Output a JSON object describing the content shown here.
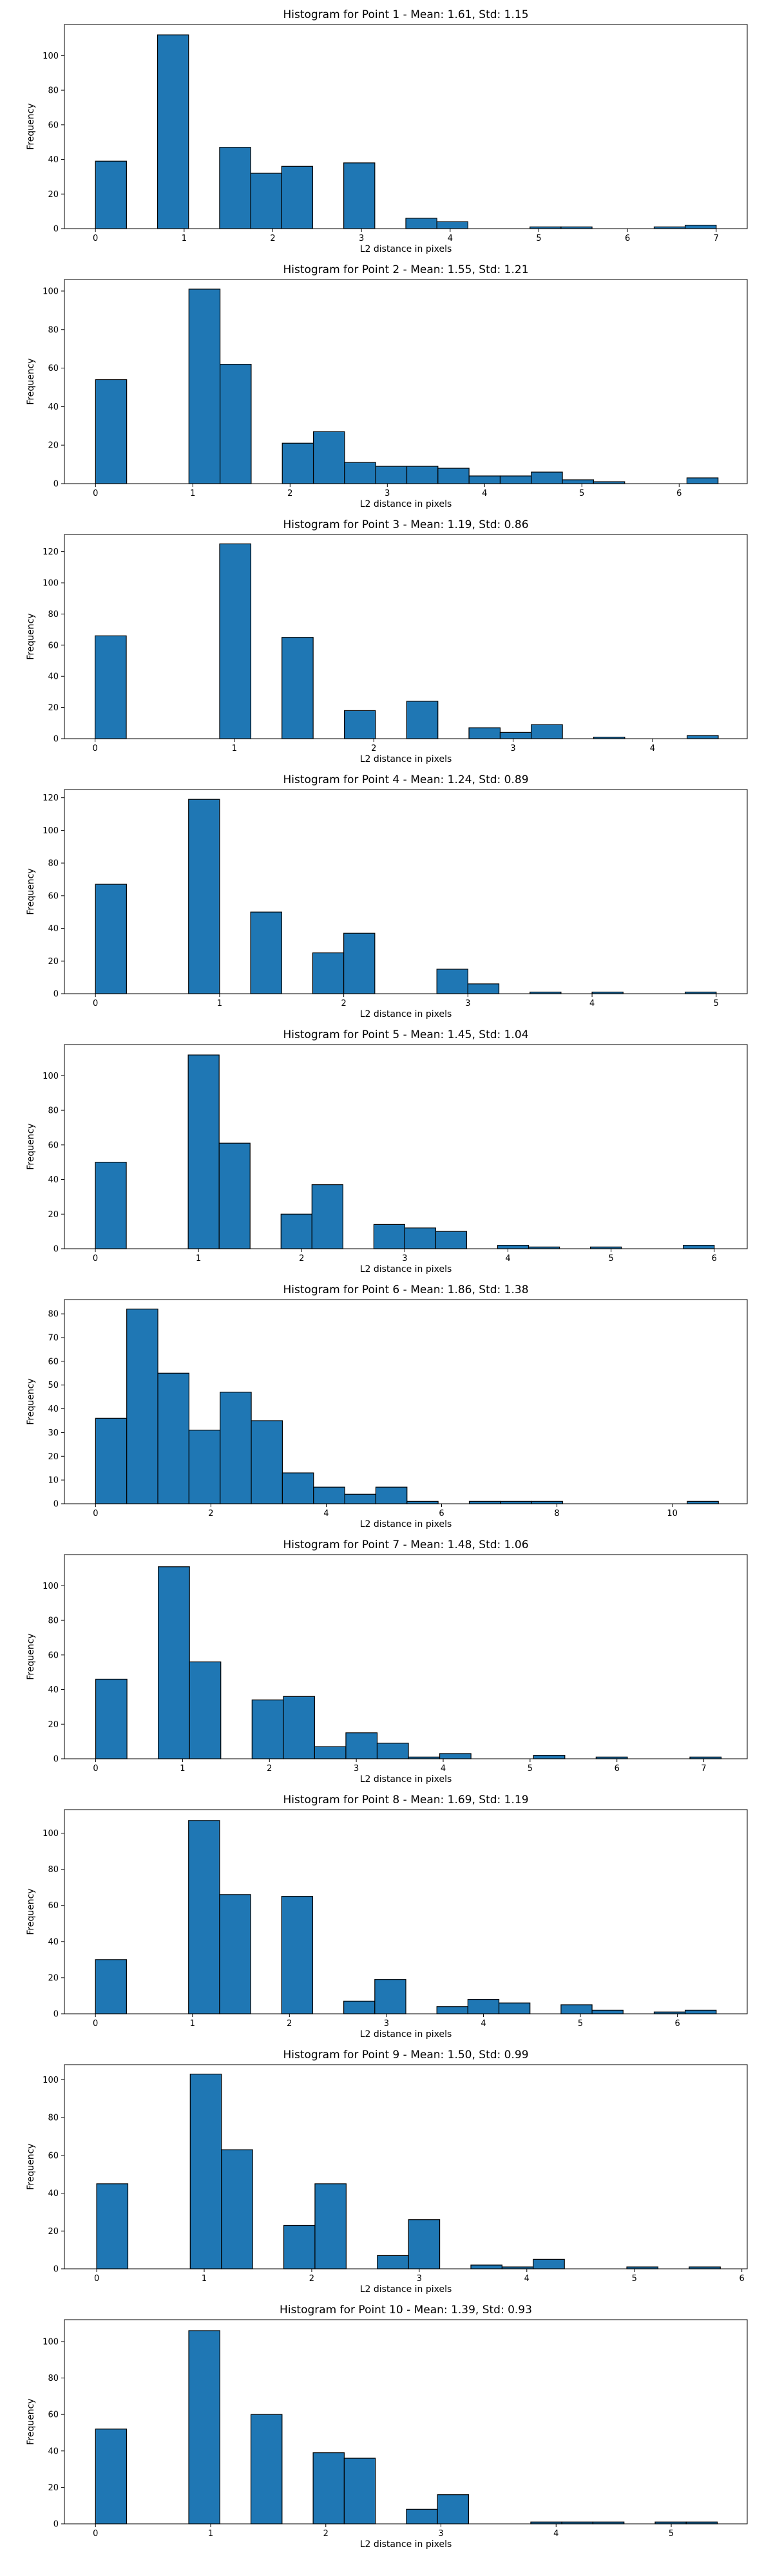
{
  "chart_data": [
    {
      "type": "bar",
      "title": "Histogram for Point 1 - Mean: 1.61, Std: 1.15",
      "xlabel": "L2 distance in pixels",
      "ylabel": "Frequency",
      "xlim": [
        -0.35,
        7.35
      ],
      "ylim": [
        0,
        118
      ],
      "xticks": [
        0,
        1,
        2,
        3,
        4,
        5,
        6,
        7
      ],
      "yticks": [
        0,
        20,
        40,
        60,
        80,
        100
      ],
      "bins": [
        {
          "x0": 0.0,
          "x1": 0.35,
          "count": 39
        },
        {
          "x0": 0.7,
          "x1": 1.05,
          "count": 112
        },
        {
          "x0": 1.4,
          "x1": 1.75,
          "count": 47
        },
        {
          "x0": 1.75,
          "x1": 2.1,
          "count": 32
        },
        {
          "x0": 2.1,
          "x1": 2.45,
          "count": 36
        },
        {
          "x0": 2.8,
          "x1": 3.15,
          "count": 38
        },
        {
          "x0": 3.5,
          "x1": 3.85,
          "count": 6
        },
        {
          "x0": 3.85,
          "x1": 4.2,
          "count": 4
        },
        {
          "x0": 4.9,
          "x1": 5.25,
          "count": 1
        },
        {
          "x0": 5.25,
          "x1": 5.6,
          "count": 1
        },
        {
          "x0": 6.3,
          "x1": 6.65,
          "count": 1
        },
        {
          "x0": 6.65,
          "x1": 7.0,
          "count": 2
        }
      ]
    },
    {
      "type": "bar",
      "title": "Histogram for Point 2 - Mean: 1.55, Std: 1.21",
      "xlabel": "L2 distance in pixels",
      "ylabel": "Frequency",
      "xlim": [
        -0.32,
        6.7
      ],
      "ylim": [
        0,
        106
      ],
      "xticks": [
        0,
        1,
        2,
        3,
        4,
        5,
        6
      ],
      "yticks": [
        0,
        20,
        40,
        60,
        80,
        100
      ],
      "bins": [
        {
          "x0": 0.0,
          "x1": 0.32,
          "count": 54
        },
        {
          "x0": 0.96,
          "x1": 1.28,
          "count": 101
        },
        {
          "x0": 1.28,
          "x1": 1.6,
          "count": 62
        },
        {
          "x0": 1.92,
          "x1": 2.24,
          "count": 21
        },
        {
          "x0": 2.24,
          "x1": 2.56,
          "count": 27
        },
        {
          "x0": 2.56,
          "x1": 2.88,
          "count": 11
        },
        {
          "x0": 2.88,
          "x1": 3.2,
          "count": 9
        },
        {
          "x0": 3.2,
          "x1": 3.52,
          "count": 9
        },
        {
          "x0": 3.52,
          "x1": 3.84,
          "count": 8
        },
        {
          "x0": 3.84,
          "x1": 4.16,
          "count": 4
        },
        {
          "x0": 4.16,
          "x1": 4.48,
          "count": 4
        },
        {
          "x0": 4.48,
          "x1": 4.8,
          "count": 6
        },
        {
          "x0": 4.8,
          "x1": 5.12,
          "count": 2
        },
        {
          "x0": 5.12,
          "x1": 5.44,
          "count": 1
        },
        {
          "x0": 6.08,
          "x1": 6.4,
          "count": 3
        }
      ]
    },
    {
      "type": "bar",
      "title": "Histogram for Point 3 - Mean: 1.19, Std: 0.86",
      "xlabel": "L2 distance in pixels",
      "ylabel": "Frequency",
      "xlim": [
        -0.22,
        4.68
      ],
      "ylim": [
        0,
        131
      ],
      "xticks": [
        0,
        1,
        2,
        3,
        4
      ],
      "yticks": [
        0,
        20,
        40,
        60,
        80,
        100,
        120
      ],
      "bins": [
        {
          "x0": 0.0,
          "x1": 0.224,
          "count": 66
        },
        {
          "x0": 0.894,
          "x1": 1.118,
          "count": 125
        },
        {
          "x0": 1.341,
          "x1": 1.565,
          "count": 65
        },
        {
          "x0": 1.789,
          "x1": 2.012,
          "count": 18
        },
        {
          "x0": 2.236,
          "x1": 2.46,
          "count": 24
        },
        {
          "x0": 2.683,
          "x1": 2.907,
          "count": 7
        },
        {
          "x0": 2.907,
          "x1": 3.13,
          "count": 4
        },
        {
          "x0": 3.13,
          "x1": 3.354,
          "count": 9
        },
        {
          "x0": 3.578,
          "x1": 3.801,
          "count": 1
        },
        {
          "x0": 4.249,
          "x1": 4.472,
          "count": 2
        }
      ]
    },
    {
      "type": "bar",
      "title": "Histogram for Point 4 - Mean: 1.24, Std: 0.89",
      "xlabel": "L2 distance in pixels",
      "ylabel": "Frequency",
      "xlim": [
        -0.25,
        5.25
      ],
      "ylim": [
        0,
        125
      ],
      "xticks": [
        0,
        1,
        2,
        3,
        4,
        5
      ],
      "yticks": [
        0,
        20,
        40,
        60,
        80,
        100,
        120
      ],
      "bins": [
        {
          "x0": 0.0,
          "x1": 0.25,
          "count": 67
        },
        {
          "x0": 0.75,
          "x1": 1.0,
          "count": 119
        },
        {
          "x0": 1.25,
          "x1": 1.5,
          "count": 50
        },
        {
          "x0": 1.75,
          "x1": 2.0,
          "count": 25
        },
        {
          "x0": 2.0,
          "x1": 2.25,
          "count": 37
        },
        {
          "x0": 2.75,
          "x1": 3.0,
          "count": 15
        },
        {
          "x0": 3.0,
          "x1": 3.25,
          "count": 6
        },
        {
          "x0": 3.5,
          "x1": 3.75,
          "count": 1
        },
        {
          "x0": 4.0,
          "x1": 4.25,
          "count": 1
        },
        {
          "x0": 4.75,
          "x1": 5.0,
          "count": 1
        }
      ]
    },
    {
      "type": "bar",
      "title": "Histogram for Point 5 - Mean: 1.45, Std: 1.04",
      "xlabel": "L2 distance in pixels",
      "ylabel": "Frequency",
      "xlim": [
        -0.3,
        6.32
      ],
      "ylim": [
        0,
        118
      ],
      "xticks": [
        0,
        1,
        2,
        3,
        4,
        5,
        6
      ],
      "yticks": [
        0,
        20,
        40,
        60,
        80,
        100
      ],
      "bins": [
        {
          "x0": 0.0,
          "x1": 0.3,
          "count": 50
        },
        {
          "x0": 0.9,
          "x1": 1.2,
          "count": 112
        },
        {
          "x0": 1.2,
          "x1": 1.5,
          "count": 61
        },
        {
          "x0": 1.8,
          "x1": 2.1,
          "count": 20
        },
        {
          "x0": 2.1,
          "x1": 2.4,
          "count": 37
        },
        {
          "x0": 2.7,
          "x1": 3.0,
          "count": 14
        },
        {
          "x0": 3.0,
          "x1": 3.3,
          "count": 12
        },
        {
          "x0": 3.3,
          "x1": 3.6,
          "count": 10
        },
        {
          "x0": 3.9,
          "x1": 4.2,
          "count": 2
        },
        {
          "x0": 4.2,
          "x1": 4.5,
          "count": 1
        },
        {
          "x0": 4.8,
          "x1": 5.1,
          "count": 1
        },
        {
          "x0": 5.7,
          "x1": 6.0,
          "count": 2
        }
      ]
    },
    {
      "type": "bar",
      "title": "Histogram for Point 6 - Mean: 1.86, Std: 1.38",
      "xlabel": "L2 distance in pixels",
      "ylabel": "Frequency",
      "xlim": [
        -0.54,
        11.3
      ],
      "ylim": [
        0,
        86
      ],
      "xticks": [
        0,
        2,
        4,
        6,
        8,
        10
      ],
      "yticks": [
        0,
        10,
        20,
        30,
        40,
        50,
        60,
        70,
        80
      ],
      "bins": [
        {
          "x0": 0.0,
          "x1": 0.54,
          "count": 36
        },
        {
          "x0": 0.54,
          "x1": 1.08,
          "count": 82
        },
        {
          "x0": 1.08,
          "x1": 1.62,
          "count": 55
        },
        {
          "x0": 1.62,
          "x1": 2.16,
          "count": 31
        },
        {
          "x0": 2.16,
          "x1": 2.7,
          "count": 47
        },
        {
          "x0": 2.7,
          "x1": 3.24,
          "count": 35
        },
        {
          "x0": 3.24,
          "x1": 3.78,
          "count": 13
        },
        {
          "x0": 3.78,
          "x1": 4.32,
          "count": 7
        },
        {
          "x0": 4.32,
          "x1": 4.86,
          "count": 4
        },
        {
          "x0": 4.86,
          "x1": 5.4,
          "count": 7
        },
        {
          "x0": 5.4,
          "x1": 5.94,
          "count": 1
        },
        {
          "x0": 6.48,
          "x1": 7.02,
          "count": 1
        },
        {
          "x0": 7.02,
          "x1": 7.56,
          "count": 1
        },
        {
          "x0": 7.56,
          "x1": 8.1,
          "count": 1
        },
        {
          "x0": 10.26,
          "x1": 10.8,
          "count": 1
        }
      ]
    },
    {
      "type": "bar",
      "title": "Histogram for Point 7 - Mean: 1.48, Std: 1.06",
      "xlabel": "L2 distance in pixels",
      "ylabel": "Frequency",
      "xlim": [
        -0.36,
        7.5
      ],
      "ylim": [
        0,
        118
      ],
      "xticks": [
        0,
        1,
        2,
        3,
        4,
        5,
        6,
        7
      ],
      "yticks": [
        0,
        20,
        40,
        60,
        80,
        100
      ],
      "bins": [
        {
          "x0": 0.0,
          "x1": 0.36,
          "count": 46
        },
        {
          "x0": 0.72,
          "x1": 1.08,
          "count": 111
        },
        {
          "x0": 1.08,
          "x1": 1.44,
          "count": 56
        },
        {
          "x0": 1.8,
          "x1": 2.16,
          "count": 34
        },
        {
          "x0": 2.16,
          "x1": 2.52,
          "count": 36
        },
        {
          "x0": 2.52,
          "x1": 2.88,
          "count": 7
        },
        {
          "x0": 2.88,
          "x1": 3.24,
          "count": 15
        },
        {
          "x0": 3.24,
          "x1": 3.6,
          "count": 9
        },
        {
          "x0": 3.6,
          "x1": 3.96,
          "count": 1
        },
        {
          "x0": 3.96,
          "x1": 4.32,
          "count": 3
        },
        {
          "x0": 5.04,
          "x1": 5.4,
          "count": 2
        },
        {
          "x0": 5.76,
          "x1": 6.12,
          "count": 1
        },
        {
          "x0": 6.84,
          "x1": 7.2,
          "count": 1
        }
      ]
    },
    {
      "type": "bar",
      "title": "Histogram for Point 8 - Mean: 1.69, Std: 1.19",
      "xlabel": "L2 distance in pixels",
      "ylabel": "Frequency",
      "xlim": [
        -0.32,
        6.72
      ],
      "ylim": [
        0,
        113
      ],
      "xticks": [
        0,
        1,
        2,
        3,
        4,
        5,
        6
      ],
      "yticks": [
        0,
        20,
        40,
        60,
        80,
        100
      ],
      "bins": [
        {
          "x0": 0.0,
          "x1": 0.32,
          "count": 30
        },
        {
          "x0": 0.96,
          "x1": 1.28,
          "count": 107
        },
        {
          "x0": 1.28,
          "x1": 1.6,
          "count": 66
        },
        {
          "x0": 1.92,
          "x1": 2.24,
          "count": 65
        },
        {
          "x0": 2.56,
          "x1": 2.88,
          "count": 7
        },
        {
          "x0": 2.88,
          "x1": 3.2,
          "count": 19
        },
        {
          "x0": 3.52,
          "x1": 3.84,
          "count": 4
        },
        {
          "x0": 3.84,
          "x1": 4.16,
          "count": 8
        },
        {
          "x0": 4.16,
          "x1": 4.48,
          "count": 6
        },
        {
          "x0": 4.8,
          "x1": 5.12,
          "count": 5
        },
        {
          "x0": 5.12,
          "x1": 5.44,
          "count": 2
        },
        {
          "x0": 5.76,
          "x1": 6.08,
          "count": 1
        },
        {
          "x0": 6.08,
          "x1": 6.4,
          "count": 2
        }
      ]
    },
    {
      "type": "bar",
      "title": "Histogram for Point 9 - Mean: 1.50, Std: 0.99",
      "xlabel": "L2 distance in pixels",
      "ylabel": "Frequency",
      "xlim": [
        -0.3,
        6.05
      ],
      "ylim": [
        0,
        108
      ],
      "xticks": [
        0,
        1,
        2,
        3,
        4,
        5,
        6
      ],
      "yticks": [
        0,
        20,
        40,
        60,
        80,
        100
      ],
      "bins": [
        {
          "x0": 0.0,
          "x1": 0.29,
          "count": 45
        },
        {
          "x0": 0.87,
          "x1": 1.16,
          "count": 103
        },
        {
          "x0": 1.16,
          "x1": 1.45,
          "count": 63
        },
        {
          "x0": 1.74,
          "x1": 2.03,
          "count": 23
        },
        {
          "x0": 2.03,
          "x1": 2.32,
          "count": 45
        },
        {
          "x0": 2.61,
          "x1": 2.9,
          "count": 7
        },
        {
          "x0": 2.9,
          "x1": 3.19,
          "count": 26
        },
        {
          "x0": 3.48,
          "x1": 3.77,
          "count": 2
        },
        {
          "x0": 3.77,
          "x1": 4.06,
          "count": 1
        },
        {
          "x0": 4.06,
          "x1": 4.35,
          "count": 5
        },
        {
          "x0": 4.93,
          "x1": 5.22,
          "count": 1
        },
        {
          "x0": 5.51,
          "x1": 5.8,
          "count": 1
        }
      ]
    },
    {
      "type": "bar",
      "title": "Histogram for Point 10 - Mean: 1.39, Std: 0.93",
      "xlabel": "L2 distance in pixels",
      "ylabel": "Frequency",
      "xlim": [
        -0.27,
        5.66
      ],
      "ylim": [
        0,
        112
      ],
      "xticks": [
        0,
        1,
        2,
        3,
        4,
        5
      ],
      "yticks": [
        0,
        20,
        40,
        60,
        80,
        100
      ],
      "bins": [
        {
          "x0": 0.0,
          "x1": 0.27,
          "count": 52
        },
        {
          "x0": 0.81,
          "x1": 1.08,
          "count": 106
        },
        {
          "x0": 1.35,
          "x1": 1.62,
          "count": 60
        },
        {
          "x0": 1.89,
          "x1": 2.16,
          "count": 39
        },
        {
          "x0": 2.16,
          "x1": 2.43,
          "count": 36
        },
        {
          "x0": 2.7,
          "x1": 2.97,
          "count": 8
        },
        {
          "x0": 2.97,
          "x1": 3.24,
          "count": 16
        },
        {
          "x0": 3.78,
          "x1": 4.05,
          "count": 1
        },
        {
          "x0": 4.05,
          "x1": 4.32,
          "count": 1
        },
        {
          "x0": 4.32,
          "x1": 4.59,
          "count": 1
        },
        {
          "x0": 4.86,
          "x1": 5.13,
          "count": 1
        },
        {
          "x0": 5.13,
          "x1": 5.4,
          "count": 1
        }
      ]
    }
  ]
}
